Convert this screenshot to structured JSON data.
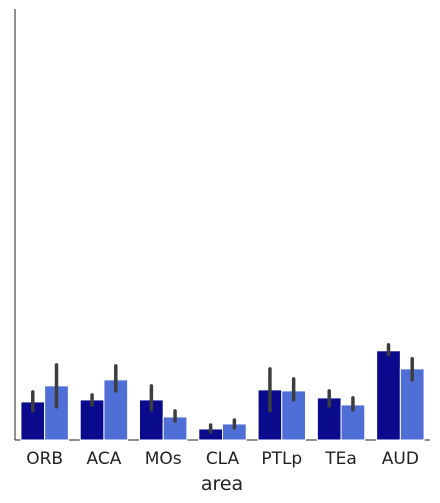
{
  "chart_data": {
    "type": "bar",
    "title": "",
    "xlabel": "area",
    "ylabel": "",
    "categories": [
      "ORB",
      "ACA",
      "MOs",
      "CLA",
      "PTLp",
      "TEa",
      "AUD"
    ],
    "ylim": [
      0,
      430
    ],
    "grid": false,
    "series": [
      {
        "color": "#0a0a8c",
        "values": [
          38,
          40,
          40,
          11,
          50,
          42,
          89
        ],
        "error_low": [
          29,
          35,
          30,
          8,
          29,
          34,
          85
        ],
        "error_high": [
          48,
          45,
          54,
          15,
          71,
          49,
          95
        ]
      },
      {
        "color": "#4f6fd6",
        "values": [
          54,
          60,
          23,
          16,
          49,
          35,
          71
        ],
        "error_low": [
          33,
          49,
          19,
          12,
          40,
          30,
          60
        ],
        "error_high": [
          75,
          74,
          29,
          20,
          61,
          42,
          81
        ]
      }
    ]
  }
}
